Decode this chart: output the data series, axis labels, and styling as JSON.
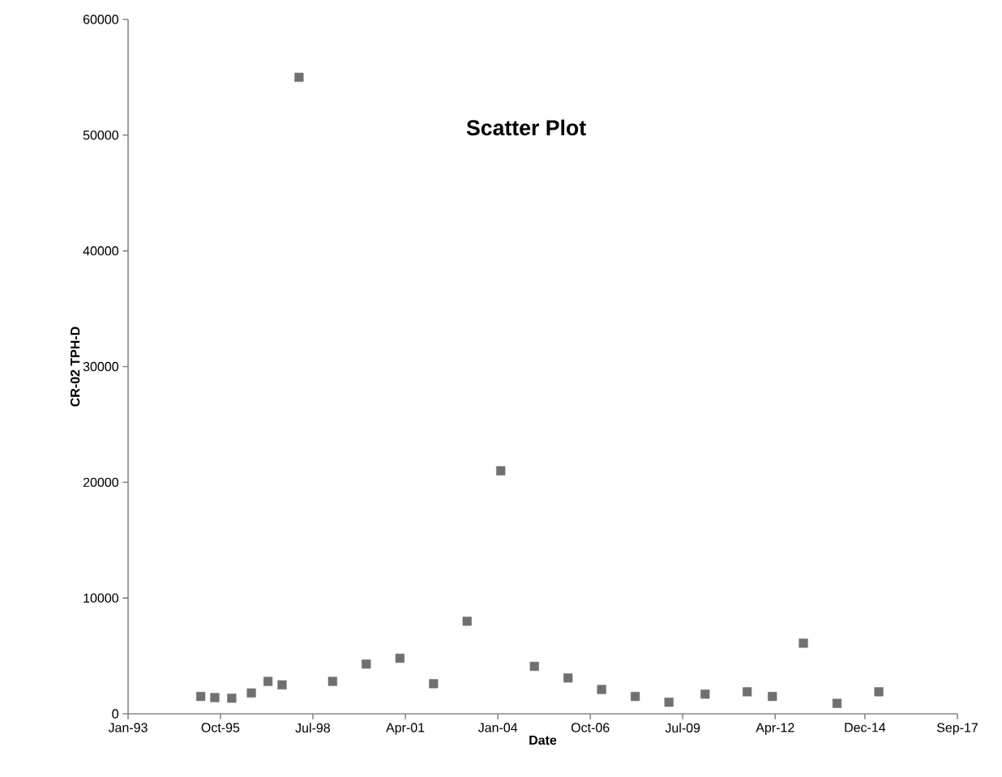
{
  "chart_data": {
    "type": "scatter",
    "title": "Scatter Plot",
    "xlabel": "Date",
    "ylabel": "CR-02 TPH-D",
    "x": [
      "1995-03",
      "1995-08",
      "1996-02",
      "1996-09",
      "1997-03",
      "1997-08",
      "1998-02",
      "1999-02",
      "2000-02",
      "2001-02",
      "2002-02",
      "2003-02",
      "2004-02",
      "2005-02",
      "2006-02",
      "2007-02",
      "2008-02",
      "2009-02",
      "2010-03",
      "2011-06",
      "2012-03",
      "2013-02",
      "2014-02",
      "2015-05"
    ],
    "values": [
      1500,
      1400,
      1350,
      1800,
      2800,
      2500,
      55000,
      2800,
      4300,
      4800,
      2600,
      8000,
      21000,
      4100,
      3100,
      2100,
      1500,
      1000,
      1700,
      1900,
      1500,
      6100,
      900,
      1900
    ],
    "color": "#707070",
    "marker": "square",
    "xlim": [
      "1993-01",
      "2017-09"
    ],
    "xticks": [
      {
        "value": "1993-01",
        "label": "Jan-93"
      },
      {
        "value": "1995-10",
        "label": "Oct-95"
      },
      {
        "value": "1998-07",
        "label": "Jul-98"
      },
      {
        "value": "2001-04",
        "label": "Apr-01"
      },
      {
        "value": "2004-01",
        "label": "Jan-04"
      },
      {
        "value": "2006-10",
        "label": "Oct-06"
      },
      {
        "value": "2009-07",
        "label": "Jul-09"
      },
      {
        "value": "2012-04",
        "label": "Apr-12"
      },
      {
        "value": "2014-12",
        "label": "Dec-14"
      },
      {
        "value": "2017-09",
        "label": "Sep-17"
      }
    ],
    "ylim": [
      0,
      60000
    ],
    "yticks": [
      0,
      10000,
      20000,
      30000,
      40000,
      50000,
      60000
    ]
  }
}
